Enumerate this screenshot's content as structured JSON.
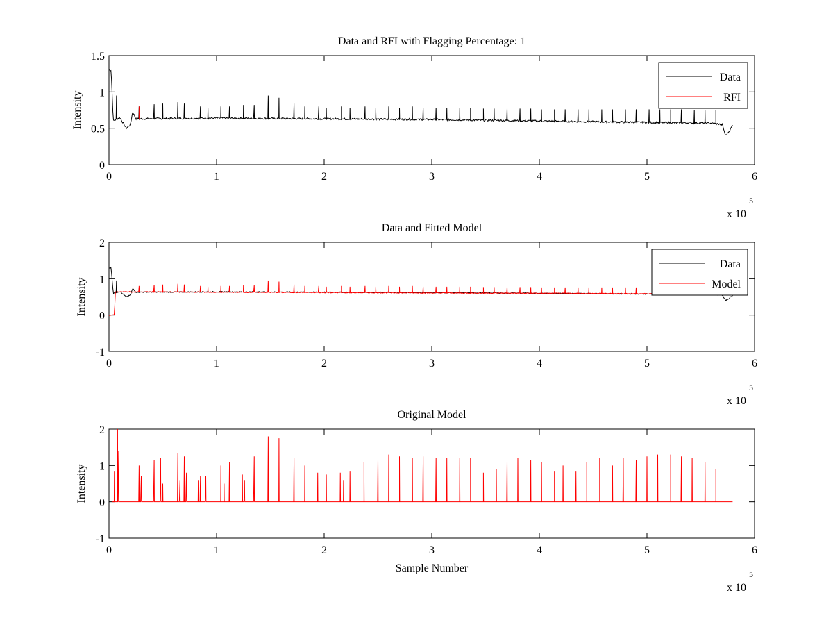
{
  "colors": {
    "data": "#000000",
    "rfi": "#ff0000",
    "model": "#ff0000"
  },
  "chart_data": [
    {
      "type": "line",
      "title": "Data and RFI with Flagging Percentage: 1",
      "xlabel": "",
      "ylabel": "Intensity",
      "xlim": [
        0,
        6
      ],
      "ylim": [
        0,
        1.5
      ],
      "x_multiplier_text": "x 10",
      "x_multiplier_exp": "5",
      "x_ticks": [
        0,
        1,
        2,
        3,
        4,
        5,
        6
      ],
      "y_ticks": [
        0,
        0.5,
        1,
        1.5
      ],
      "x_tick_labels": [
        "0",
        "1",
        "2",
        "3",
        "4",
        "5",
        "6"
      ],
      "y_tick_labels": [
        "0",
        "0.5",
        "1",
        "1.5"
      ],
      "legend": "top-right",
      "grid": false,
      "series": [
        {
          "name": "Data",
          "color": "#000000",
          "baseline": [
            [
              0,
              1.3
            ],
            [
              0.02,
              1.3
            ],
            [
              0.04,
              0.6
            ],
            [
              0.1,
              0.65
            ],
            [
              0.16,
              0.5
            ],
            [
              0.2,
              0.55
            ],
            [
              0.22,
              0.73
            ],
            [
              0.25,
              0.63
            ],
            [
              1,
              0.64
            ],
            [
              2,
              0.63
            ],
            [
              3,
              0.62
            ],
            [
              4,
              0.6
            ],
            [
              5,
              0.58
            ],
            [
              5.6,
              0.57
            ],
            [
              5.7,
              0.55
            ],
            [
              5.73,
              0.4
            ],
            [
              5.76,
              0.45
            ],
            [
              5.8,
              0.55
            ]
          ],
          "spikes": [
            [
              0.07,
              0.95
            ],
            [
              0.28,
              0.8
            ],
            [
              0.42,
              0.83
            ],
            [
              0.5,
              0.84
            ],
            [
              0.64,
              0.86
            ],
            [
              0.7,
              0.84
            ],
            [
              0.85,
              0.8
            ],
            [
              0.92,
              0.78
            ],
            [
              1.04,
              0.8
            ],
            [
              1.12,
              0.8
            ],
            [
              1.25,
              0.82
            ],
            [
              1.35,
              0.82
            ],
            [
              1.48,
              0.95
            ],
            [
              1.58,
              0.92
            ],
            [
              1.72,
              0.84
            ],
            [
              1.82,
              0.8
            ],
            [
              1.95,
              0.8
            ],
            [
              2.02,
              0.78
            ],
            [
              2.16,
              0.8
            ],
            [
              2.24,
              0.78
            ],
            [
              2.38,
              0.8
            ],
            [
              2.48,
              0.78
            ],
            [
              2.6,
              0.8
            ],
            [
              2.7,
              0.78
            ],
            [
              2.82,
              0.8
            ],
            [
              2.92,
              0.78
            ],
            [
              3.04,
              0.78
            ],
            [
              3.14,
              0.78
            ],
            [
              3.26,
              0.78
            ],
            [
              3.36,
              0.78
            ],
            [
              3.48,
              0.77
            ],
            [
              3.58,
              0.77
            ],
            [
              3.7,
              0.77
            ],
            [
              3.82,
              0.77
            ],
            [
              3.92,
              0.77
            ],
            [
              4.02,
              0.76
            ],
            [
              4.14,
              0.76
            ],
            [
              4.24,
              0.76
            ],
            [
              4.36,
              0.76
            ],
            [
              4.46,
              0.76
            ],
            [
              4.58,
              0.76
            ],
            [
              4.68,
              0.76
            ],
            [
              4.8,
              0.76
            ],
            [
              4.9,
              0.76
            ],
            [
              5.02,
              0.76
            ],
            [
              5.12,
              0.76
            ],
            [
              5.22,
              0.76
            ],
            [
              5.32,
              0.76
            ],
            [
              5.44,
              0.75
            ],
            [
              5.54,
              0.75
            ],
            [
              5.64,
              0.75
            ]
          ]
        },
        {
          "name": "RFI",
          "color": "#ff0000",
          "baseline": [],
          "spikes": [
            [
              0.28,
              0.8
            ]
          ]
        }
      ]
    },
    {
      "type": "line",
      "title": "Data and Fitted Model",
      "xlabel": "",
      "ylabel": "Intensity",
      "xlim": [
        0,
        6
      ],
      "ylim": [
        -1,
        2
      ],
      "x_multiplier_text": "x 10",
      "x_multiplier_exp": "5",
      "x_ticks": [
        0,
        1,
        2,
        3,
        4,
        5,
        6
      ],
      "y_ticks": [
        -1,
        0,
        1,
        2
      ],
      "x_tick_labels": [
        "0",
        "1",
        "2",
        "3",
        "4",
        "5",
        "6"
      ],
      "y_tick_labels": [
        "-1",
        "0",
        "1",
        "2"
      ],
      "legend": "top-right",
      "grid": false,
      "series": [
        {
          "name": "Data",
          "color": "#000000",
          "baseline": [
            [
              0,
              1.3
            ],
            [
              0.02,
              1.3
            ],
            [
              0.04,
              0.6
            ],
            [
              0.1,
              0.65
            ],
            [
              0.16,
              0.5
            ],
            [
              0.2,
              0.55
            ],
            [
              0.22,
              0.73
            ],
            [
              0.25,
              0.63
            ],
            [
              1,
              0.64
            ],
            [
              2,
              0.63
            ],
            [
              3,
              0.62
            ],
            [
              4,
              0.6
            ],
            [
              5,
              0.58
            ],
            [
              5.6,
              0.57
            ],
            [
              5.7,
              0.55
            ],
            [
              5.73,
              0.4
            ],
            [
              5.76,
              0.45
            ],
            [
              5.8,
              0.55
            ]
          ],
          "spikes": [
            [
              0.07,
              0.95
            ]
          ]
        },
        {
          "name": "Model",
          "color": "#ff0000",
          "baseline": [
            [
              0,
              0
            ],
            [
              0.05,
              0
            ],
            [
              0.06,
              0.64
            ],
            [
              5.8,
              0.58
            ]
          ],
          "spikes": [
            [
              0.28,
              0.8
            ],
            [
              0.42,
              0.83
            ],
            [
              0.5,
              0.84
            ],
            [
              0.64,
              0.86
            ],
            [
              0.7,
              0.84
            ],
            [
              0.85,
              0.8
            ],
            [
              0.92,
              0.78
            ],
            [
              1.04,
              0.8
            ],
            [
              1.12,
              0.8
            ],
            [
              1.25,
              0.82
            ],
            [
              1.35,
              0.82
            ],
            [
              1.48,
              0.95
            ],
            [
              1.58,
              0.92
            ],
            [
              1.72,
              0.84
            ],
            [
              1.82,
              0.8
            ],
            [
              1.95,
              0.8
            ],
            [
              2.02,
              0.78
            ],
            [
              2.16,
              0.8
            ],
            [
              2.24,
              0.78
            ],
            [
              2.38,
              0.8
            ],
            [
              2.48,
              0.78
            ],
            [
              2.6,
              0.8
            ],
            [
              2.7,
              0.78
            ],
            [
              2.82,
              0.8
            ],
            [
              2.92,
              0.78
            ],
            [
              3.04,
              0.78
            ],
            [
              3.14,
              0.78
            ],
            [
              3.26,
              0.78
            ],
            [
              3.36,
              0.78
            ],
            [
              3.48,
              0.77
            ],
            [
              3.58,
              0.77
            ],
            [
              3.7,
              0.77
            ],
            [
              3.82,
              0.77
            ],
            [
              3.92,
              0.77
            ],
            [
              4.02,
              0.76
            ],
            [
              4.14,
              0.76
            ],
            [
              4.24,
              0.76
            ],
            [
              4.36,
              0.76
            ],
            [
              4.46,
              0.76
            ],
            [
              4.58,
              0.76
            ],
            [
              4.68,
              0.76
            ],
            [
              4.8,
              0.76
            ],
            [
              4.9,
              0.76
            ]
          ]
        }
      ]
    },
    {
      "type": "line",
      "title": "Original Model",
      "xlabel": "Sample Number",
      "ylabel": "Intensity",
      "xlim": [
        0,
        6
      ],
      "ylim": [
        -1,
        2
      ],
      "x_multiplier_text": "x 10",
      "x_multiplier_exp": "5",
      "x_ticks": [
        0,
        1,
        2,
        3,
        4,
        5,
        6
      ],
      "y_ticks": [
        -1,
        0,
        1,
        2
      ],
      "x_tick_labels": [
        "0",
        "1",
        "2",
        "3",
        "4",
        "5",
        "6"
      ],
      "y_tick_labels": [
        "-1",
        "0",
        "1",
        "2"
      ],
      "legend": "none",
      "grid": false,
      "series": [
        {
          "name": "",
          "color": "#ff0000",
          "baseline": [
            [
              0.03,
              0
            ],
            [
              5.8,
              0
            ]
          ],
          "spikes": [
            [
              0.05,
              0.85
            ],
            [
              0.08,
              2.0
            ],
            [
              0.09,
              1.4
            ],
            [
              0.28,
              1.0
            ],
            [
              0.3,
              0.7
            ],
            [
              0.42,
              1.15
            ],
            [
              0.48,
              1.2
            ],
            [
              0.5,
              0.5
            ],
            [
              0.64,
              1.35
            ],
            [
              0.66,
              0.6
            ],
            [
              0.7,
              1.25
            ],
            [
              0.72,
              0.8
            ],
            [
              0.83,
              0.6
            ],
            [
              0.85,
              0.7
            ],
            [
              0.9,
              0.7
            ],
            [
              1.04,
              1.0
            ],
            [
              1.07,
              0.5
            ],
            [
              1.12,
              1.1
            ],
            [
              1.24,
              0.75
            ],
            [
              1.26,
              0.6
            ],
            [
              1.35,
              1.25
            ],
            [
              1.48,
              1.8
            ],
            [
              1.58,
              1.75
            ],
            [
              1.72,
              1.2
            ],
            [
              1.82,
              1.0
            ],
            [
              1.94,
              0.8
            ],
            [
              2.02,
              0.75
            ],
            [
              2.15,
              0.8
            ],
            [
              2.18,
              0.6
            ],
            [
              2.24,
              0.85
            ],
            [
              2.37,
              1.1
            ],
            [
              2.5,
              1.15
            ],
            [
              2.6,
              1.3
            ],
            [
              2.7,
              1.25
            ],
            [
              2.82,
              1.2
            ],
            [
              2.92,
              1.25
            ],
            [
              3.04,
              1.2
            ],
            [
              3.14,
              1.2
            ],
            [
              3.26,
              1.2
            ],
            [
              3.36,
              1.2
            ],
            [
              3.48,
              0.8
            ],
            [
              3.6,
              0.9
            ],
            [
              3.7,
              1.1
            ],
            [
              3.8,
              1.2
            ],
            [
              3.92,
              1.15
            ],
            [
              4.02,
              1.1
            ],
            [
              4.14,
              0.85
            ],
            [
              4.22,
              1.0
            ],
            [
              4.34,
              0.85
            ],
            [
              4.44,
              1.1
            ],
            [
              4.56,
              1.2
            ],
            [
              4.68,
              1.0
            ],
            [
              4.78,
              1.2
            ],
            [
              4.9,
              1.15
            ],
            [
              5.0,
              1.25
            ],
            [
              5.1,
              1.3
            ],
            [
              5.22,
              1.3
            ],
            [
              5.32,
              1.25
            ],
            [
              5.42,
              1.2
            ],
            [
              5.54,
              1.1
            ],
            [
              5.64,
              0.9
            ]
          ]
        }
      ]
    }
  ]
}
